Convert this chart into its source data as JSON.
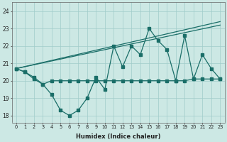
{
  "xlabel": "Humidex (Indice chaleur)",
  "bg_color": "#cce8e4",
  "grid_color": "#a0ccca",
  "line_color": "#1a6e68",
  "xlim": [
    -0.5,
    23.5
  ],
  "ylim": [
    17.6,
    24.5
  ],
  "yticks": [
    18,
    19,
    20,
    21,
    22,
    23,
    24
  ],
  "xticks": [
    0,
    1,
    2,
    3,
    4,
    5,
    6,
    7,
    8,
    9,
    10,
    11,
    12,
    13,
    14,
    15,
    16,
    17,
    18,
    19,
    20,
    21,
    22,
    23
  ],
  "line1_x": [
    0,
    1,
    2,
    3,
    4,
    5,
    6,
    7,
    8,
    9,
    10,
    11,
    12,
    13,
    14,
    15,
    16,
    17,
    18,
    19,
    20,
    21,
    22,
    23
  ],
  "line1_y": [
    20.7,
    20.5,
    20.1,
    19.8,
    19.2,
    18.3,
    18.0,
    18.3,
    19.0,
    20.2,
    19.5,
    22.0,
    20.8,
    22.0,
    21.5,
    23.0,
    22.3,
    21.8,
    20.0,
    22.6,
    20.1,
    21.5,
    20.7,
    20.1
  ],
  "line2_x": [
    0,
    1,
    2,
    3,
    4,
    5,
    6,
    7,
    8,
    9,
    10,
    11,
    12,
    13,
    14,
    15,
    16,
    17,
    18,
    19,
    20,
    21,
    22,
    23
  ],
  "line2_y": [
    20.7,
    20.5,
    20.2,
    19.8,
    20.0,
    20.0,
    20.0,
    20.0,
    20.0,
    20.0,
    20.0,
    20.0,
    20.0,
    20.0,
    20.0,
    20.0,
    20.0,
    20.0,
    20.0,
    20.0,
    20.1,
    20.1,
    20.1,
    20.1
  ],
  "line3_x": [
    0,
    23
  ],
  "line3_y": [
    20.7,
    23.4
  ],
  "line4_x": [
    0,
    23
  ],
  "line4_y": [
    20.7,
    23.2
  ]
}
